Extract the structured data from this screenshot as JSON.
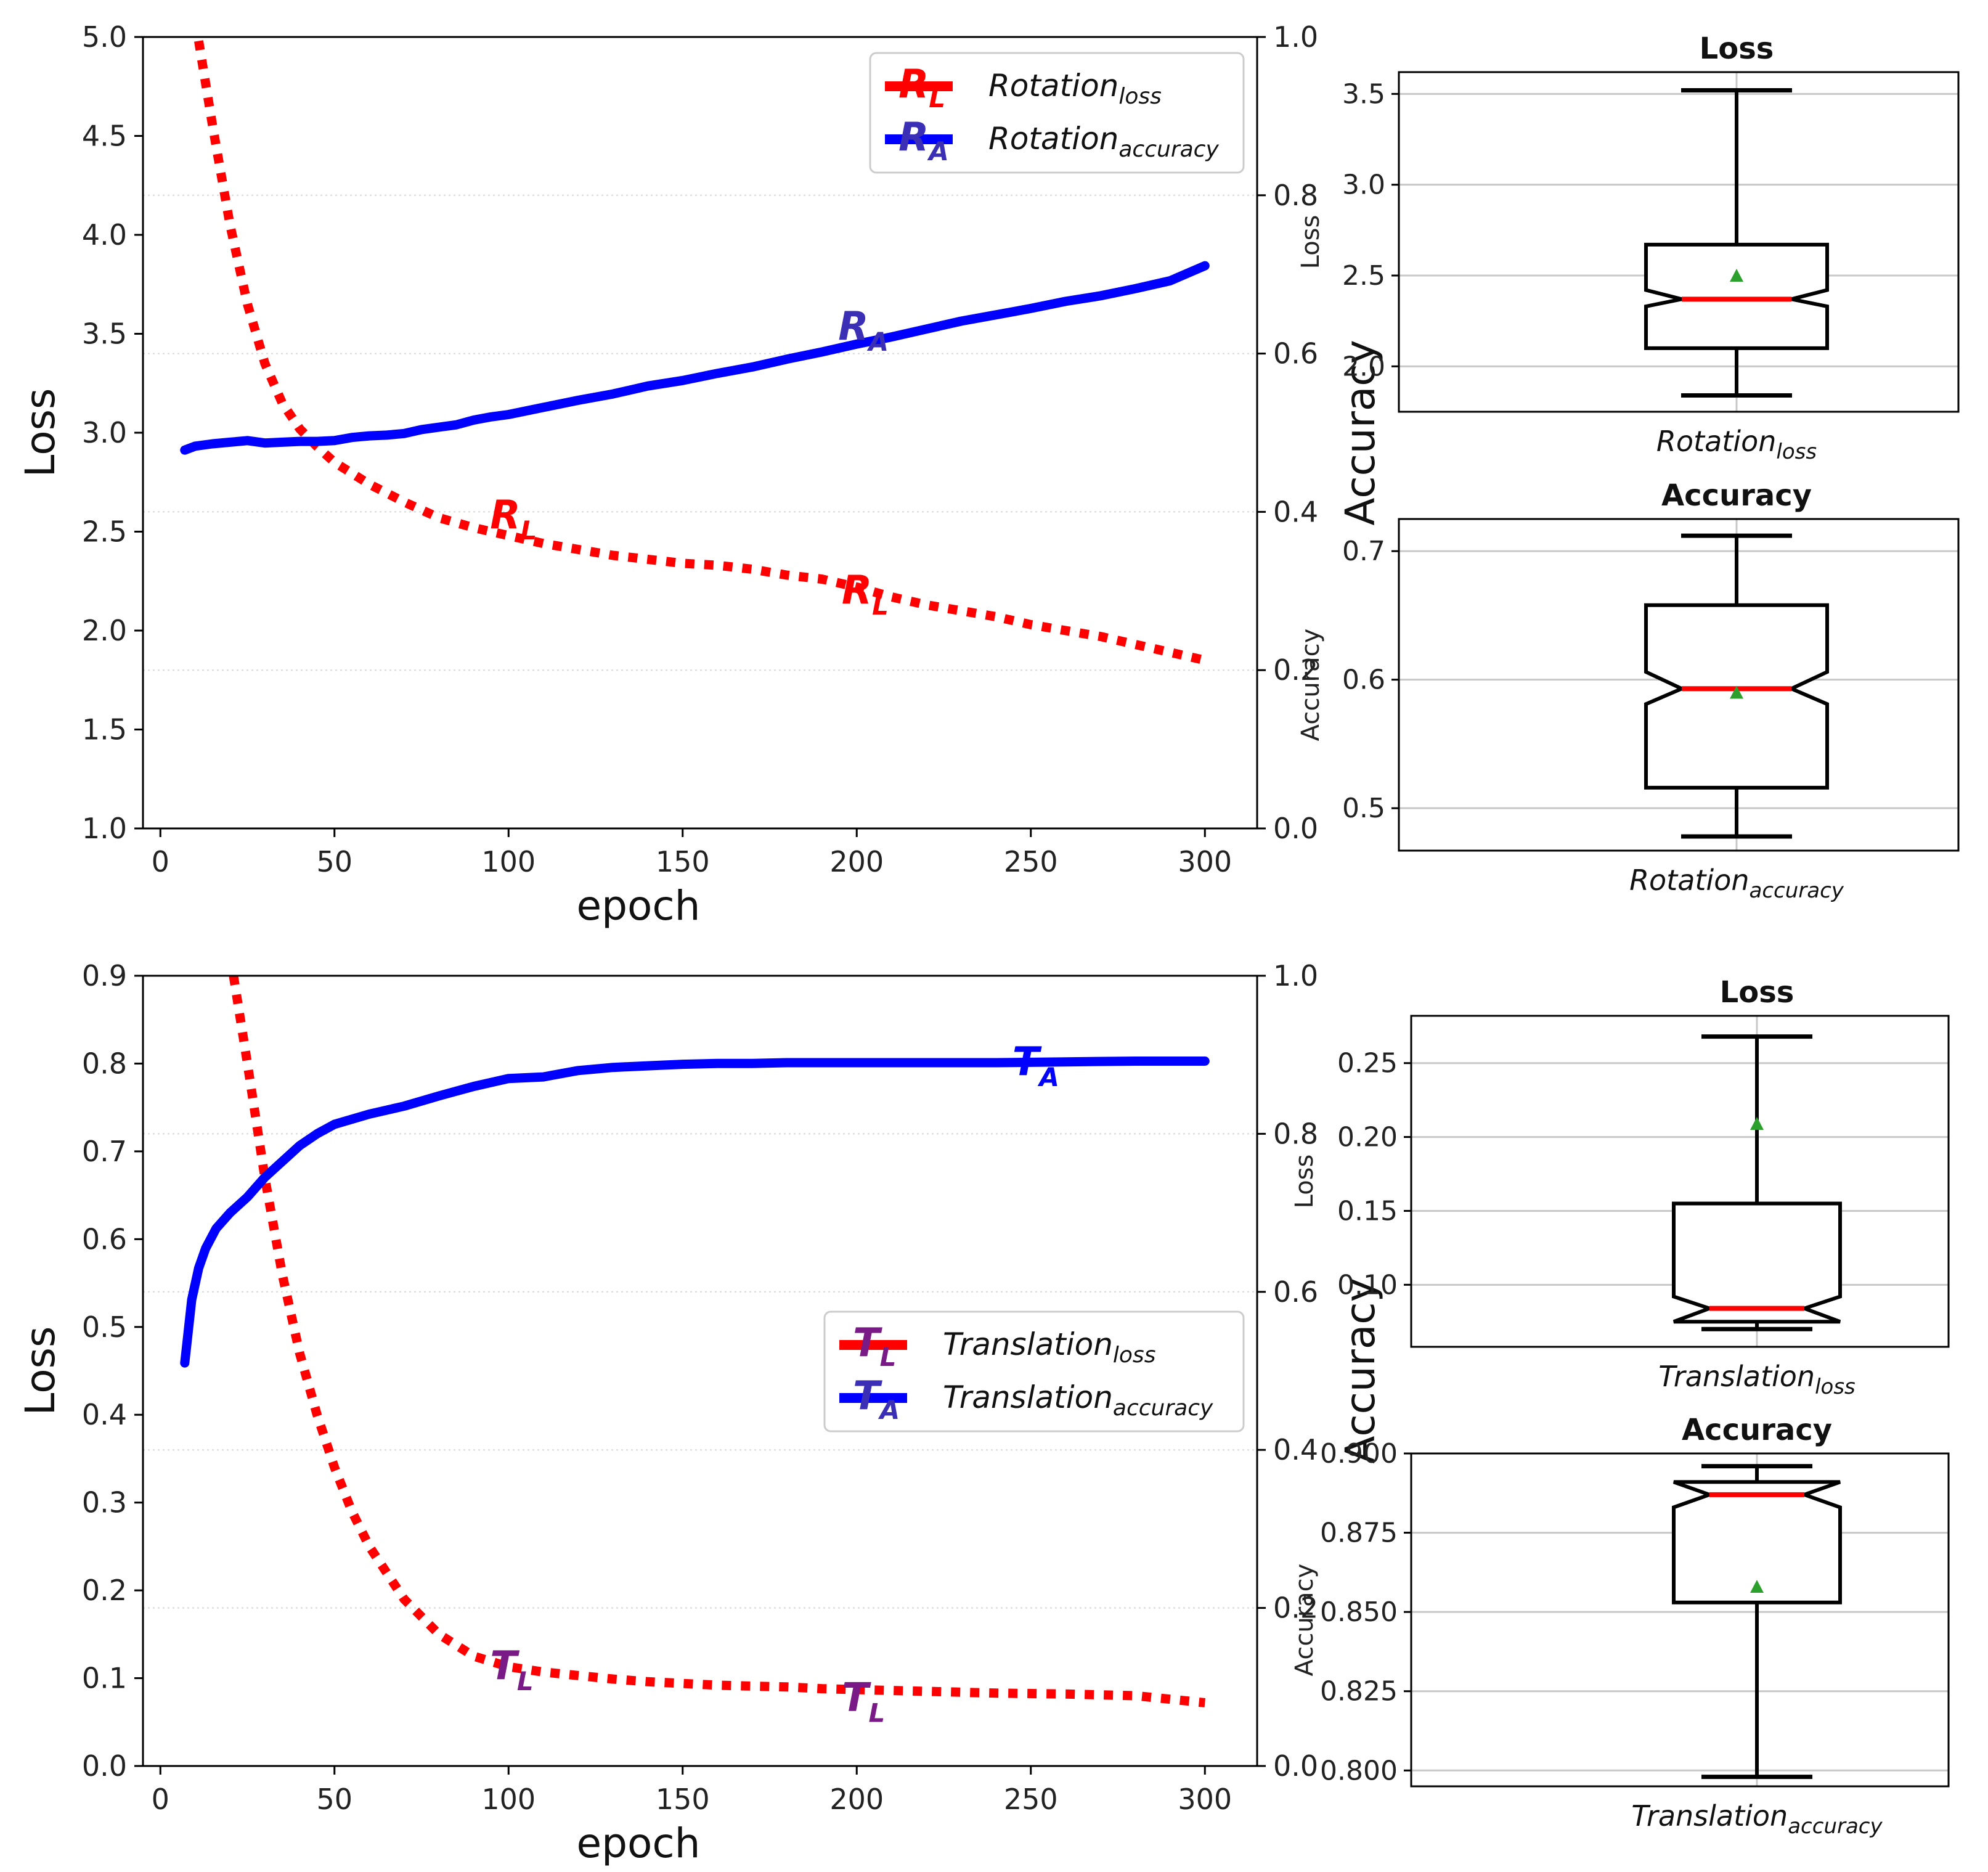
{
  "colors": {
    "loss": "#ff0000",
    "accuracy": "#0000ff",
    "mean_marker": "#2ca02c",
    "grid": "#c8c8c8"
  },
  "chart_data": [
    {
      "id": "rotation_curve",
      "type": "line",
      "xlabel": "epoch",
      "ylabel_left": "Loss",
      "ylabel_right": "Accuracy",
      "xlim": [
        -5,
        315
      ],
      "xticks": [
        0,
        50,
        100,
        150,
        200,
        250,
        300
      ],
      "ylim_left": [
        1.0,
        5.0
      ],
      "yticks_left": [
        "1.0",
        "1.5",
        "2.0",
        "2.5",
        "3.0",
        "3.5",
        "4.0",
        "4.5",
        "5.0"
      ],
      "ylim_right": [
        0.0,
        1.0
      ],
      "yticks_right": [
        "0.0",
        "0.2",
        "0.4",
        "0.6",
        "0.8",
        "1.0"
      ],
      "series": [
        {
          "name": "Rotation loss",
          "legend_main": "Rotation",
          "legend_sub": "loss",
          "marker_main": "R",
          "marker_sub": "L",
          "axis": "left",
          "style": "dotted",
          "color": "#ff0000",
          "x": [
            11,
            15,
            20,
            25,
            30,
            35,
            40,
            45,
            50,
            60,
            70,
            80,
            90,
            100,
            110,
            120,
            130,
            140,
            150,
            160,
            170,
            180,
            190,
            200,
            210,
            220,
            230,
            240,
            250,
            260,
            270,
            280,
            290,
            300
          ],
          "y": [
            4.98,
            4.55,
            4.05,
            3.65,
            3.35,
            3.15,
            3.02,
            2.93,
            2.85,
            2.74,
            2.65,
            2.57,
            2.52,
            2.48,
            2.44,
            2.41,
            2.38,
            2.36,
            2.34,
            2.33,
            2.31,
            2.28,
            2.26,
            2.22,
            2.17,
            2.13,
            2.1,
            2.07,
            2.03,
            2.0,
            1.97,
            1.93,
            1.89,
            1.85
          ]
        },
        {
          "name": "Rotation accuracy",
          "legend_main": "Rotation",
          "legend_sub": "accuracy",
          "marker_main": "R",
          "marker_sub": "A",
          "axis": "right",
          "style": "solid",
          "color": "#0000ff",
          "x": [
            7,
            10,
            15,
            20,
            25,
            30,
            35,
            40,
            45,
            50,
            55,
            60,
            65,
            70,
            75,
            80,
            85,
            90,
            95,
            100,
            110,
            120,
            130,
            140,
            150,
            160,
            170,
            180,
            190,
            200,
            210,
            220,
            230,
            240,
            250,
            260,
            270,
            280,
            290,
            300
          ],
          "y": [
            0.478,
            0.483,
            0.486,
            0.488,
            0.49,
            0.487,
            0.488,
            0.489,
            0.489,
            0.49,
            0.494,
            0.496,
            0.497,
            0.499,
            0.504,
            0.507,
            0.51,
            0.516,
            0.52,
            0.523,
            0.532,
            0.541,
            0.549,
            0.559,
            0.566,
            0.575,
            0.583,
            0.593,
            0.602,
            0.612,
            0.621,
            0.631,
            0.641,
            0.649,
            0.657,
            0.666,
            0.673,
            0.682,
            0.692,
            0.711
          ]
        }
      ],
      "annotations": [
        {
          "main": "R",
          "sub": "L",
          "x": 100,
          "y": 2.58,
          "axis": "left",
          "color": "#ff0000"
        },
        {
          "main": "R",
          "sub": "L",
          "x": 201,
          "y": 2.2,
          "axis": "left",
          "color": "#ff0000"
        },
        {
          "main": "R",
          "sub": "A",
          "x": 200,
          "y": 0.633,
          "axis": "right",
          "color": "#3a2fb5"
        }
      ],
      "legend_position": "top-right"
    },
    {
      "id": "translation_curve",
      "type": "line",
      "xlabel": "epoch",
      "ylabel_left": "Loss",
      "ylabel_right": "Accuracy",
      "xlim": [
        -5,
        315
      ],
      "xticks": [
        0,
        50,
        100,
        150,
        200,
        250,
        300
      ],
      "ylim_left": [
        0.0,
        0.9
      ],
      "yticks_left": [
        "0.0",
        "0.1",
        "0.2",
        "0.3",
        "0.4",
        "0.5",
        "0.6",
        "0.7",
        "0.8",
        "0.9"
      ],
      "ylim_right": [
        0.0,
        1.0
      ],
      "yticks_right": [
        "0.0",
        "0.2",
        "0.4",
        "0.6",
        "0.8",
        "1.0"
      ],
      "series": [
        {
          "name": "Translation loss",
          "legend_main": "Translation",
          "legend_sub": "loss",
          "marker_main": "T",
          "marker_sub": "L",
          "axis": "left",
          "style": "dotted",
          "color": "#ff0000",
          "x": [
            21,
            25,
            30,
            35,
            40,
            45,
            50,
            55,
            60,
            70,
            80,
            90,
            100,
            110,
            120,
            130,
            140,
            150,
            160,
            170,
            180,
            190,
            200,
            220,
            240,
            260,
            280,
            300
          ],
          "y": [
            0.9,
            0.8,
            0.67,
            0.56,
            0.47,
            0.4,
            0.34,
            0.29,
            0.25,
            0.19,
            0.15,
            0.125,
            0.113,
            0.107,
            0.103,
            0.099,
            0.096,
            0.094,
            0.092,
            0.091,
            0.09,
            0.088,
            0.087,
            0.085,
            0.083,
            0.082,
            0.08,
            0.072
          ]
        },
        {
          "name": "Translation accuracy",
          "legend_main": "Translation",
          "legend_sub": "accuracy",
          "marker_main": "T",
          "marker_sub": "A",
          "axis": "right",
          "style": "solid",
          "color": "#0000ff",
          "x": [
            7,
            9,
            11,
            13,
            16,
            20,
            25,
            30,
            35,
            40,
            45,
            50,
            60,
            70,
            80,
            90,
            100,
            110,
            120,
            130,
            140,
            150,
            160,
            170,
            180,
            190,
            200,
            220,
            240,
            260,
            280,
            300
          ],
          "y": [
            0.51,
            0.59,
            0.63,
            0.655,
            0.68,
            0.7,
            0.72,
            0.745,
            0.765,
            0.785,
            0.8,
            0.812,
            0.825,
            0.835,
            0.848,
            0.86,
            0.87,
            0.872,
            0.88,
            0.884,
            0.886,
            0.888,
            0.889,
            0.889,
            0.89,
            0.89,
            0.89,
            0.89,
            0.89,
            0.891,
            0.892,
            0.892
          ]
        }
      ],
      "annotations": [
        {
          "main": "T",
          "sub": "L",
          "x": 100,
          "y": 0.113,
          "axis": "left",
          "color": "#7a1a86"
        },
        {
          "main": "T",
          "sub": "L",
          "x": 201,
          "y": 0.077,
          "axis": "left",
          "color": "#7a1a86"
        },
        {
          "main": "T",
          "sub": "A",
          "x": 250,
          "y": 0.89,
          "axis": "right",
          "color": "#0000ff"
        }
      ],
      "legend_position": "center-right"
    },
    {
      "id": "rotation_loss_box",
      "type": "box",
      "title": "Loss",
      "ylabel": "Loss",
      "xlabel_main": "Rotation",
      "xlabel_sub": "loss",
      "ylim": [
        1.75,
        3.62
      ],
      "yticks": [
        "2.0",
        "2.5",
        "3.0",
        "3.5"
      ],
      "whisker_low": 1.84,
      "q1": 2.1,
      "median": 2.37,
      "q3": 2.67,
      "whisker_high": 3.52,
      "mean": 2.5,
      "notch_low": 2.33,
      "notch_high": 2.42
    },
    {
      "id": "rotation_accuracy_box",
      "type": "box",
      "title": "Accuracy",
      "ylabel": "Accuracy",
      "xlabel_main": "Rotation",
      "xlabel_sub": "accuracy",
      "ylim": [
        0.467,
        0.725
      ],
      "yticks": [
        "0.5",
        "0.6",
        "0.7"
      ],
      "whisker_low": 0.478,
      "q1": 0.516,
      "median": 0.593,
      "q3": 0.658,
      "whisker_high": 0.712,
      "mean": 0.59,
      "notch_low": 0.581,
      "notch_high": 0.606
    },
    {
      "id": "translation_loss_box",
      "type": "box",
      "title": "Loss",
      "ylabel": "Loss",
      "xlabel_main": "Translation",
      "xlabel_sub": "loss",
      "ylim": [
        0.058,
        0.282
      ],
      "yticks": [
        "0.10",
        "0.15",
        "0.20",
        "0.25"
      ],
      "whisker_low": 0.07,
      "q1": 0.075,
      "median": 0.084,
      "q3": 0.155,
      "whisker_high": 0.268,
      "mean": 0.209,
      "notch_low": 0.075,
      "notch_high": 0.092
    },
    {
      "id": "translation_accuracy_box",
      "type": "box",
      "title": "Accuracy",
      "ylabel": "Accuracy",
      "xlabel_main": "Translation",
      "xlabel_sub": "accuracy",
      "ylim": [
        0.795,
        0.9
      ],
      "yticks": [
        "0.800",
        "0.825",
        "0.850",
        "0.875",
        "0.900"
      ],
      "whisker_low": 0.798,
      "q1": 0.853,
      "median": 0.887,
      "q3": 0.891,
      "whisker_high": 0.896,
      "mean": 0.858,
      "notch_low": 0.883,
      "notch_high": 0.891
    }
  ]
}
